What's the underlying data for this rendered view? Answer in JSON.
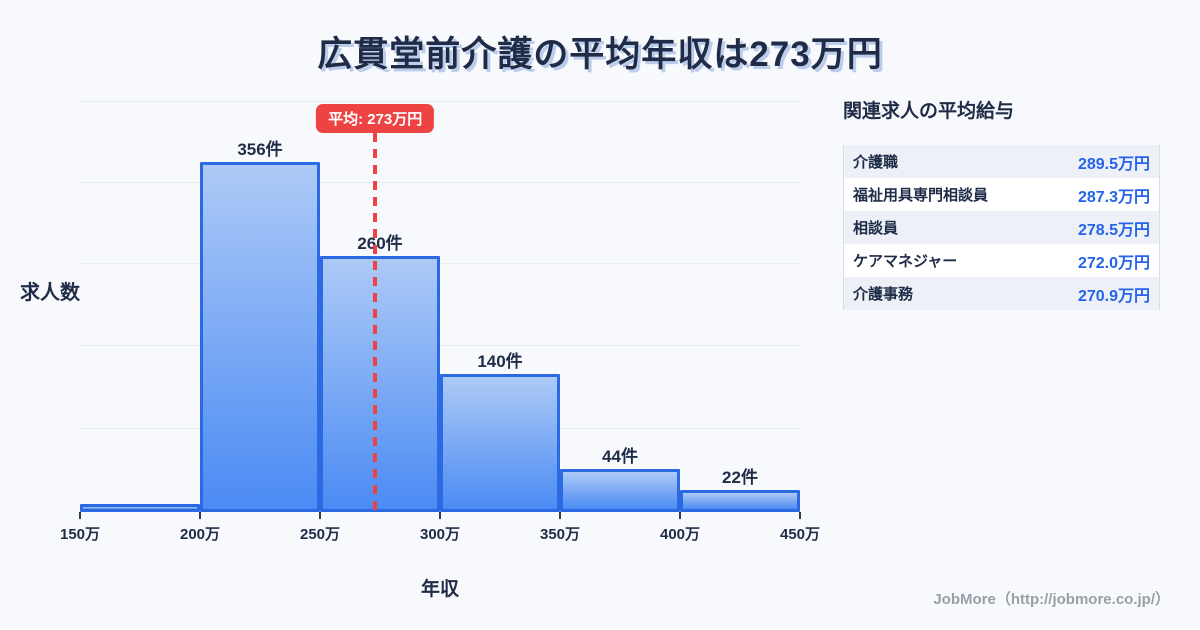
{
  "title": "広貫堂前介護の平均年収は273万円",
  "chart_data": {
    "type": "bar",
    "subtype": "histogram",
    "title": "広貫堂前介護の平均年収は273万円",
    "xlabel": "年収",
    "ylabel": "求人数",
    "x_tick_labels": [
      "150万",
      "200万",
      "250万",
      "300万",
      "350万",
      "400万",
      "450万"
    ],
    "bin_edges": [
      150,
      200,
      250,
      300,
      350,
      400,
      450
    ],
    "values": [
      8,
      356,
      260,
      140,
      44,
      22
    ],
    "bar_labels": [
      "",
      "356件",
      "260件",
      "140件",
      "44件",
      "22件"
    ],
    "average": {
      "value": 273,
      "label": "平均: 273万円"
    },
    "ylim": [
      0,
      418
    ],
    "grid": true,
    "legend": null,
    "colors": {
      "background": "#f7f9fc",
      "bar_fill_top": "#adcaf6",
      "bar_fill_bottom": "#4b8bf4",
      "bar_border": "#2b6ae3",
      "average_red": "#ee4343",
      "gridline": "#e7ebf2",
      "text_navy": "#1f2b47"
    }
  },
  "related_jobs": {
    "heading": "関連求人の平均給与",
    "rows": [
      {
        "name": "介護職",
        "salary": "289.5万円"
      },
      {
        "name": "福祉用具専門相談員",
        "salary": "287.3万円"
      },
      {
        "name": "相談員",
        "salary": "278.5万円"
      },
      {
        "name": "ケアマネジャー",
        "salary": "272.0万円"
      },
      {
        "name": "介護事務",
        "salary": "270.9万円"
      }
    ],
    "value_color": "#2563eb"
  },
  "footer": {
    "credit": "JobMore（http://jobmore.co.jp/）"
  }
}
